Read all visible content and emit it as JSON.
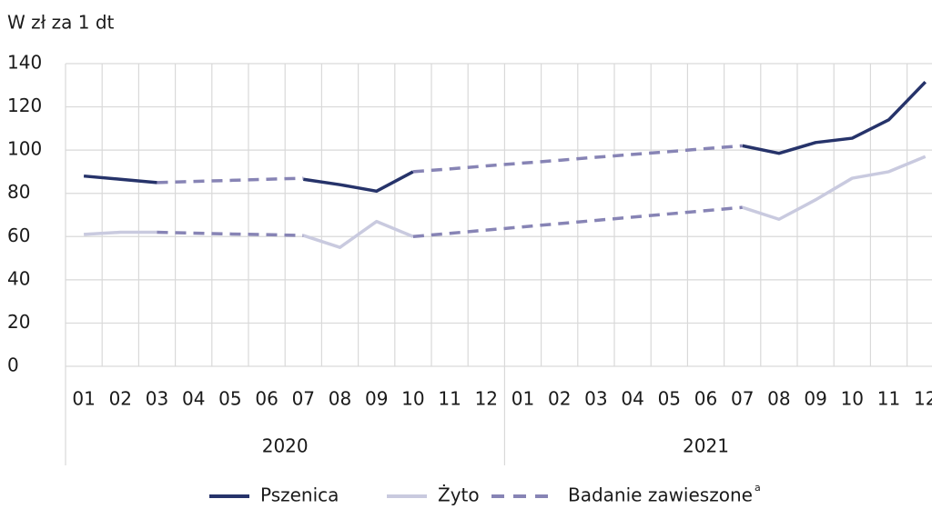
{
  "chart_data": {
    "type": "line",
    "y_axis_label": "W zł za 1 dt",
    "categories": [
      "01",
      "02",
      "03",
      "04",
      "05",
      "06",
      "07",
      "08",
      "09",
      "10",
      "11",
      "12",
      "01",
      "02",
      "03",
      "04",
      "05",
      "06",
      "07",
      "08",
      "09",
      "10",
      "11",
      "12"
    ],
    "year_groups": [
      {
        "label": "2020",
        "count": 12
      },
      {
        "label": "2021",
        "count": 12
      }
    ],
    "ylim": [
      0,
      140
    ],
    "yticks": [
      0,
      20,
      40,
      60,
      80,
      100,
      120,
      140
    ],
    "grid": true,
    "legend": "bottom",
    "series": [
      {
        "name": "Pszenica",
        "color": "#26336a",
        "dashed": false,
        "values": [
          88,
          86.5,
          85,
          null,
          null,
          null,
          86.5,
          84,
          81,
          90,
          null,
          null,
          null,
          null,
          null,
          null,
          null,
          null,
          102,
          98.5,
          103.5,
          105.5,
          114,
          131.5
        ]
      },
      {
        "name": "Żyto",
        "color": "#c9cadf",
        "dashed": false,
        "values": [
          61,
          62,
          62,
          null,
          null,
          null,
          60.5,
          55,
          67,
          60,
          null,
          null,
          null,
          null,
          null,
          null,
          null,
          null,
          73.5,
          68,
          77,
          87,
          90,
          97
        ]
      },
      {
        "name": "Badanie zawieszone",
        "superscript": "a",
        "color": "#8784b5",
        "dashed": true,
        "values": [
          null,
          null,
          85,
          85.5,
          86,
          86.5,
          87,
          null,
          null,
          90,
          91.3,
          92.7,
          94,
          95.3,
          96.7,
          98,
          99.3,
          100.7,
          102,
          null,
          null,
          null,
          null,
          null
        ]
      },
      {
        "color": "#8784b5",
        "dashed": true,
        "values": [
          null,
          null,
          62,
          61.6,
          61.2,
          60.9,
          60.5,
          null,
          null,
          60,
          61.5,
          63,
          64.5,
          66,
          67.5,
          69,
          70.5,
          72,
          73.5,
          null,
          null,
          null,
          null,
          null
        ]
      }
    ]
  }
}
